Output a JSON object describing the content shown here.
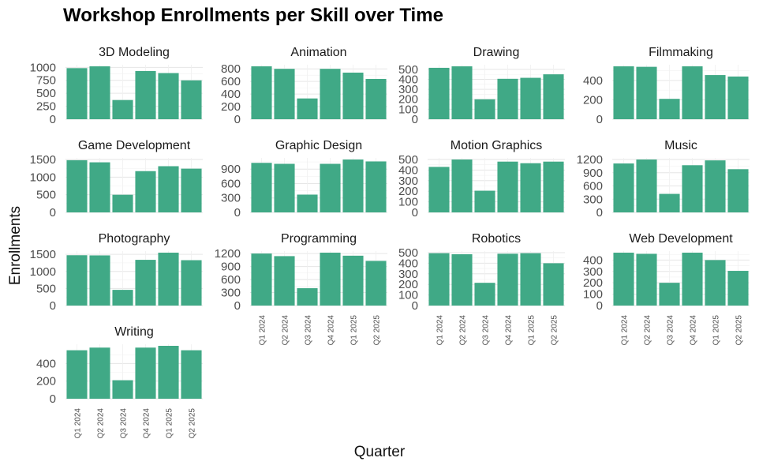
{
  "chart_data": {
    "type": "bar",
    "title": "Workshop Enrollments per Skill over Time",
    "xlabel": "Quarter",
    "ylabel": "Enrollments",
    "categories": [
      "Q1 2024",
      "Q2 2024",
      "Q3 2024",
      "Q4 2024",
      "Q1 2025",
      "Q2 2025"
    ],
    "bar_color": "#40a986",
    "grid": true,
    "layout": "facet-wrap 4 columns, free y scales",
    "panels": [
      {
        "name": "3D Modeling",
        "values": [
          985,
          1020,
          370,
          930,
          890,
          750
        ],
        "yticks": [
          0,
          250,
          500,
          750,
          1000
        ]
      },
      {
        "name": "Animation",
        "values": [
          840,
          800,
          330,
          800,
          740,
          640
        ],
        "yticks": [
          0,
          200,
          400,
          600,
          800
        ]
      },
      {
        "name": "Drawing",
        "values": [
          515,
          530,
          200,
          405,
          415,
          450
        ],
        "yticks": [
          0,
          100,
          200,
          300,
          400,
          500
        ]
      },
      {
        "name": "Filmmaking",
        "values": [
          545,
          540,
          210,
          545,
          455,
          440
        ],
        "yticks": [
          0,
          200,
          400
        ]
      },
      {
        "name": "Game Development",
        "values": [
          1480,
          1420,
          500,
          1170,
          1310,
          1240
        ],
        "yticks": [
          0,
          500,
          1000,
          1500
        ]
      },
      {
        "name": "Graphic Design",
        "values": [
          1030,
          1010,
          370,
          1010,
          1100,
          1060
        ],
        "yticks": [
          0,
          300,
          600,
          900
        ]
      },
      {
        "name": "Motion Graphics",
        "values": [
          430,
          500,
          205,
          480,
          465,
          480
        ],
        "yticks": [
          0,
          100,
          200,
          300,
          400,
          500
        ]
      },
      {
        "name": "Music",
        "values": [
          1110,
          1200,
          420,
          1070,
          1180,
          980
        ],
        "yticks": [
          0,
          300,
          600,
          900,
          1200
        ]
      },
      {
        "name": "Photography",
        "values": [
          1475,
          1470,
          460,
          1340,
          1550,
          1330
        ],
        "yticks": [
          0,
          500,
          1000,
          1500
        ]
      },
      {
        "name": "Programming",
        "values": [
          1200,
          1140,
          400,
          1220,
          1150,
          1030
        ],
        "yticks": [
          0,
          300,
          600,
          900,
          1200
        ]
      },
      {
        "name": "Robotics",
        "values": [
          495,
          485,
          215,
          490,
          495,
          400
        ],
        "yticks": [
          0,
          100,
          200,
          300,
          400,
          500
        ]
      },
      {
        "name": "Web Development",
        "values": [
          465,
          455,
          200,
          465,
          400,
          305
        ],
        "yticks": [
          0,
          100,
          200,
          300,
          400
        ]
      },
      {
        "name": "Writing",
        "values": [
          550,
          580,
          210,
          580,
          600,
          550
        ],
        "yticks": [
          0,
          200,
          400
        ]
      }
    ]
  }
}
